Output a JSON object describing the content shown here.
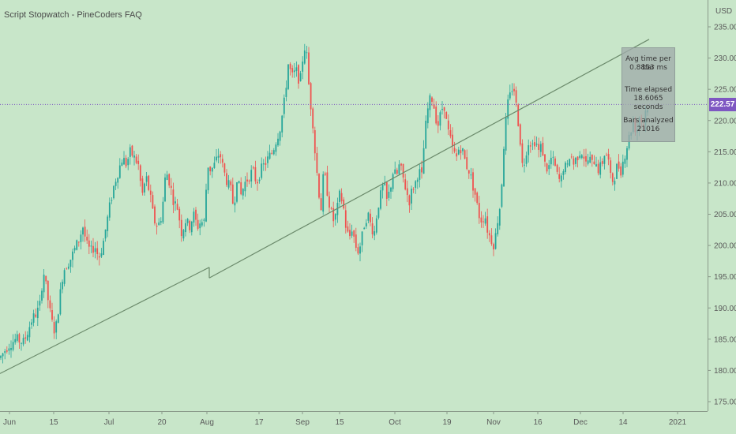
{
  "header": {
    "title": "Script Stopwatch - PineCoders FAQ",
    "currency": "USD"
  },
  "price_tag": {
    "label": "222.57",
    "color": "#7e57c2"
  },
  "stats": {
    "avg_label": "Avg time per bar",
    "avg_value": "0.8853 ms",
    "elapsed_label": "Time elapsed",
    "elapsed_value": "18.6065 seconds",
    "bars_label": "Bars analyzed",
    "bars_value": "21016"
  },
  "colors": {
    "background": "#c8e6c9",
    "up": "#26a69a",
    "down": "#ef5350",
    "trend_line": "#6b8a6b",
    "axis_text": "#5a5a5a",
    "price_line": "#7e57c2"
  },
  "chart_data": {
    "type": "candlestick",
    "title": "Script Stopwatch - PineCoders FAQ",
    "ylabel": "USD",
    "ylim": [
      173,
      237
    ],
    "y_ticks": [
      "235.00",
      "230.00",
      "225.00",
      "220.00",
      "215.00",
      "210.00",
      "205.00",
      "200.00",
      "195.00",
      "190.00",
      "185.00",
      "180.00",
      "175.00"
    ],
    "x_ticks": [
      "Jun",
      "15",
      "Jul",
      "20",
      "Aug",
      "17",
      "Sep",
      "15",
      "Oct",
      "19",
      "Nov",
      "16",
      "Dec",
      "14",
      "2021"
    ],
    "last_price": 222.57,
    "close_path": [
      [
        0,
        182
      ],
      [
        10,
        184
      ],
      [
        20,
        185
      ],
      [
        30,
        184.5
      ],
      [
        40,
        188
      ],
      [
        50,
        190
      ],
      [
        55,
        196
      ],
      [
        60,
        192
      ],
      [
        65,
        188
      ],
      [
        70,
        186
      ],
      [
        75,
        191
      ],
      [
        80,
        196
      ],
      [
        85,
        197
      ],
      [
        90,
        198
      ],
      [
        100,
        201
      ],
      [
        105,
        203
      ],
      [
        110,
        200
      ],
      [
        115,
        199
      ],
      [
        120,
        200
      ],
      [
        125,
        198
      ],
      [
        130,
        200
      ],
      [
        140,
        207
      ],
      [
        145,
        210
      ],
      [
        150,
        212
      ],
      [
        155,
        214
      ],
      [
        160,
        213
      ],
      [
        165,
        215
      ],
      [
        170,
        214
      ],
      [
        175,
        213
      ],
      [
        180,
        208
      ],
      [
        185,
        211
      ],
      [
        190,
        208
      ],
      [
        195,
        204
      ],
      [
        200,
        203
      ],
      [
        205,
        205
      ],
      [
        210,
        212
      ],
      [
        215,
        210
      ],
      [
        220,
        207
      ],
      [
        225,
        206
      ],
      [
        230,
        202
      ],
      [
        235,
        204
      ],
      [
        240,
        203
      ],
      [
        245,
        205
      ],
      [
        250,
        203
      ],
      [
        255,
        204
      ],
      [
        258,
        203
      ],
      [
        263,
        213
      ],
      [
        267,
        212
      ],
      [
        272,
        213
      ],
      [
        278,
        215
      ],
      [
        283,
        212
      ],
      [
        288,
        210
      ],
      [
        292,
        209
      ],
      [
        296,
        206
      ],
      [
        300,
        211
      ],
      [
        305,
        208
      ],
      [
        310,
        210
      ],
      [
        315,
        211
      ],
      [
        320,
        212
      ],
      [
        325,
        210
      ],
      [
        330,
        212
      ],
      [
        335,
        213
      ],
      [
        340,
        214
      ],
      [
        345,
        215
      ],
      [
        350,
        217
      ],
      [
        355,
        219
      ],
      [
        360,
        223
      ],
      [
        365,
        229
      ],
      [
        370,
        227
      ],
      [
        375,
        228
      ],
      [
        380,
        226
      ],
      [
        385,
        232
      ],
      [
        388,
        231
      ],
      [
        392,
        224
      ],
      [
        396,
        220
      ],
      [
        400,
        213
      ],
      [
        403,
        210
      ],
      [
        406,
        205
      ],
      [
        410,
        212
      ],
      [
        414,
        209
      ],
      [
        418,
        206
      ],
      [
        422,
        204
      ],
      [
        426,
        205
      ],
      [
        430,
        208
      ],
      [
        434,
        207
      ],
      [
        438,
        203
      ],
      [
        442,
        201
      ],
      [
        446,
        203
      ],
      [
        450,
        200
      ],
      [
        454,
        199
      ],
      [
        458,
        201
      ],
      [
        462,
        204
      ],
      [
        466,
        205
      ],
      [
        470,
        203
      ],
      [
        474,
        202
      ],
      [
        478,
        206
      ],
      [
        482,
        208
      ],
      [
        486,
        210
      ],
      [
        490,
        207
      ],
      [
        494,
        209
      ],
      [
        498,
        212
      ],
      [
        502,
        211
      ],
      [
        506,
        213
      ],
      [
        510,
        211
      ],
      [
        514,
        209
      ],
      [
        518,
        207
      ],
      [
        522,
        209
      ],
      [
        526,
        210
      ],
      [
        530,
        212
      ],
      [
        534,
        211
      ],
      [
        538,
        218
      ],
      [
        542,
        222
      ],
      [
        546,
        224
      ],
      [
        550,
        222
      ],
      [
        554,
        219
      ],
      [
        558,
        221
      ],
      [
        562,
        223
      ],
      [
        566,
        219
      ],
      [
        570,
        217
      ],
      [
        574,
        215
      ],
      [
        578,
        214
      ],
      [
        582,
        216
      ],
      [
        586,
        215
      ],
      [
        590,
        213
      ],
      [
        594,
        212
      ],
      [
        598,
        210
      ],
      [
        602,
        208
      ],
      [
        606,
        205
      ],
      [
        610,
        204
      ],
      [
        614,
        205
      ],
      [
        618,
        202
      ],
      [
        622,
        201
      ],
      [
        626,
        200
      ],
      [
        630,
        204
      ],
      [
        634,
        207
      ],
      [
        638,
        216
      ],
      [
        642,
        222
      ],
      [
        646,
        224
      ],
      [
        650,
        226
      ],
      [
        654,
        222
      ],
      [
        658,
        218
      ],
      [
        662,
        212
      ],
      [
        666,
        215
      ],
      [
        670,
        217
      ],
      [
        674,
        216
      ],
      [
        678,
        217
      ],
      [
        682,
        215
      ],
      [
        686,
        216
      ],
      [
        690,
        213
      ],
      [
        694,
        212
      ],
      [
        698,
        214
      ],
      [
        702,
        213
      ],
      [
        706,
        211
      ],
      [
        710,
        210
      ],
      [
        714,
        213
      ],
      [
        718,
        212
      ],
      [
        722,
        215
      ],
      [
        726,
        213
      ],
      [
        730,
        214
      ],
      [
        734,
        215
      ],
      [
        738,
        215
      ],
      [
        742,
        213
      ],
      [
        746,
        214
      ],
      [
        750,
        213
      ],
      [
        754,
        214
      ],
      [
        758,
        212
      ],
      [
        762,
        213
      ],
      [
        766,
        215
      ],
      [
        770,
        214
      ],
      [
        774,
        210
      ],
      [
        778,
        211
      ],
      [
        782,
        213
      ],
      [
        786,
        212
      ],
      [
        790,
        214
      ],
      [
        794,
        216
      ],
      [
        798,
        218
      ],
      [
        802,
        220
      ],
      [
        806,
        218
      ],
      [
        810,
        221
      ],
      [
        814,
        219
      ],
      [
        818,
        222
      ],
      [
        822,
        222.57
      ]
    ],
    "trend_line": {
      "segment_1": [
        [
          0,
          179.5
        ],
        [
          265,
          196.5
        ]
      ],
      "segment_2": [
        [
          265,
          194.8
        ],
        [
          822,
          233.0
        ]
      ]
    }
  }
}
